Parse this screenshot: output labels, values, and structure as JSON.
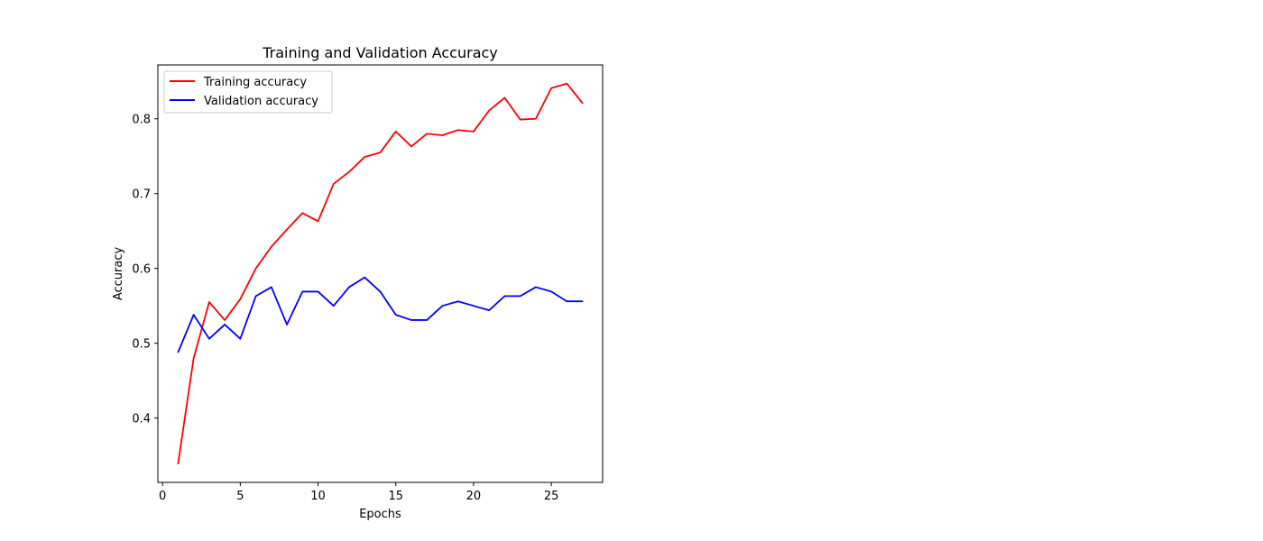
{
  "chart_data": {
    "type": "line",
    "title": "Training and Validation Accuracy",
    "xlabel": "Epochs",
    "ylabel": "Accuracy",
    "xlim": [
      -0.3,
      28.3
    ],
    "ylim": [
      0.314,
      0.872
    ],
    "xticks": [
      0,
      5,
      10,
      15,
      20,
      25
    ],
    "yticks": [
      0.4,
      0.5,
      0.6,
      0.7,
      0.8
    ],
    "ytick_labels": [
      "0.4",
      "0.5",
      "0.6",
      "0.7",
      "0.8"
    ],
    "grid": false,
    "legend_position": "upper-left",
    "x": [
      1,
      2,
      3,
      4,
      5,
      6,
      7,
      8,
      9,
      10,
      11,
      12,
      13,
      14,
      15,
      16,
      17,
      18,
      19,
      20,
      21,
      22,
      23,
      24,
      25,
      26,
      27
    ],
    "series": [
      {
        "name": "Training accuracy",
        "color": "#ff0000",
        "values": [
          0.339,
          0.48,
          0.555,
          0.531,
          0.559,
          0.6,
          0.629,
          0.652,
          0.674,
          0.663,
          0.713,
          0.729,
          0.749,
          0.755,
          0.783,
          0.763,
          0.78,
          0.778,
          0.785,
          0.783,
          0.811,
          0.828,
          0.799,
          0.8,
          0.841,
          0.847,
          0.821
        ]
      },
      {
        "name": "Validation accuracy",
        "color": "#0000ff",
        "values": [
          0.488,
          0.538,
          0.506,
          0.525,
          0.506,
          0.563,
          0.575,
          0.525,
          0.569,
          0.569,
          0.55,
          0.575,
          0.588,
          0.569,
          0.538,
          0.531,
          0.531,
          0.55,
          0.556,
          0.55,
          0.544,
          0.563,
          0.563,
          0.575,
          0.569,
          0.556,
          0.556
        ]
      }
    ]
  }
}
